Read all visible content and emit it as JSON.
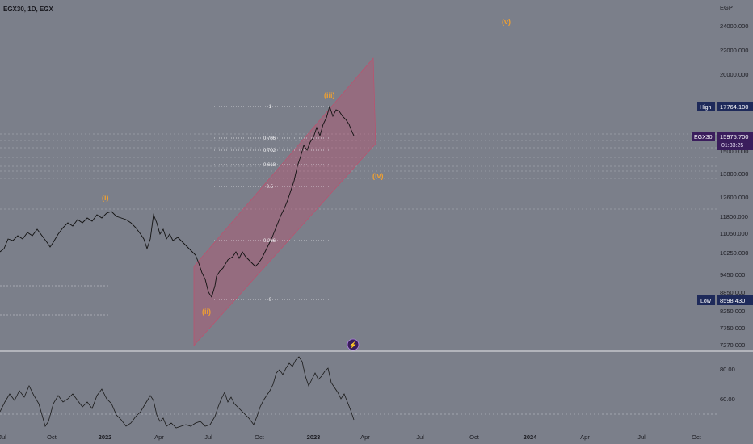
{
  "header": {
    "symbol_title": "EGX30, 1D, EGX"
  },
  "currency": "EGP",
  "price_axis": {
    "ticks": [
      "24000.000",
      "22000.000",
      "20000.000",
      "17764.100",
      "15975.700",
      "15000.000",
      "13800.000",
      "12600.000",
      "11800.000",
      "11050.000",
      "10250.000",
      "9450.000",
      "8850.000",
      "8598.430",
      "8250.000",
      "7750.000",
      "7270.000"
    ],
    "high_label": "High",
    "high_value": "17764.100",
    "low_label": "Low",
    "low_value": "8598.430",
    "current_symbol": "EGX30",
    "current_value": "15975.700",
    "countdown": "01:33:25"
  },
  "rsi_axis": {
    "ticks": [
      "80.00",
      "60.00"
    ]
  },
  "time_axis": {
    "labels": [
      "Jul",
      "Oct",
      "2022",
      "Apr",
      "Jul",
      "Oct",
      "2023",
      "Apr",
      "Jul",
      "Oct",
      "2024",
      "Apr",
      "Jul",
      "Oct"
    ]
  },
  "wave_labels": {
    "w1": "(i)",
    "w2": "(ii)",
    "w3": "(iii)",
    "w4": "(iv)",
    "w5": "(v)"
  },
  "fib_levels": [
    "1",
    "0.786",
    "0.702",
    "0.618",
    "0.5",
    "0.236",
    "0"
  ],
  "event_icon": "lightning-icon",
  "colors": {
    "background": "#7b7f8a",
    "wave_label": "#f0a030",
    "channel": "#c74a6a",
    "price_line": "#111111",
    "badge": "#1e2a5a",
    "badge_current": "#3a1d5c"
  },
  "chart_data": {
    "type": "line",
    "title": "EGX30, 1D, EGX",
    "ylabel": "EGP",
    "x": [
      "Jul",
      "Oct",
      "2022",
      "Apr",
      "Jul",
      "Oct",
      "2023",
      "Apr"
    ],
    "series": [
      {
        "name": "EGX30",
        "values": [
          10700,
          11300,
          11900,
          10900,
          8598.43,
          10250,
          17764.1,
          15975.7
        ]
      }
    ],
    "high": 17764.1,
    "low": 8598.43,
    "last": 15975.7,
    "ylim": [
      7270,
      24000
    ]
  }
}
